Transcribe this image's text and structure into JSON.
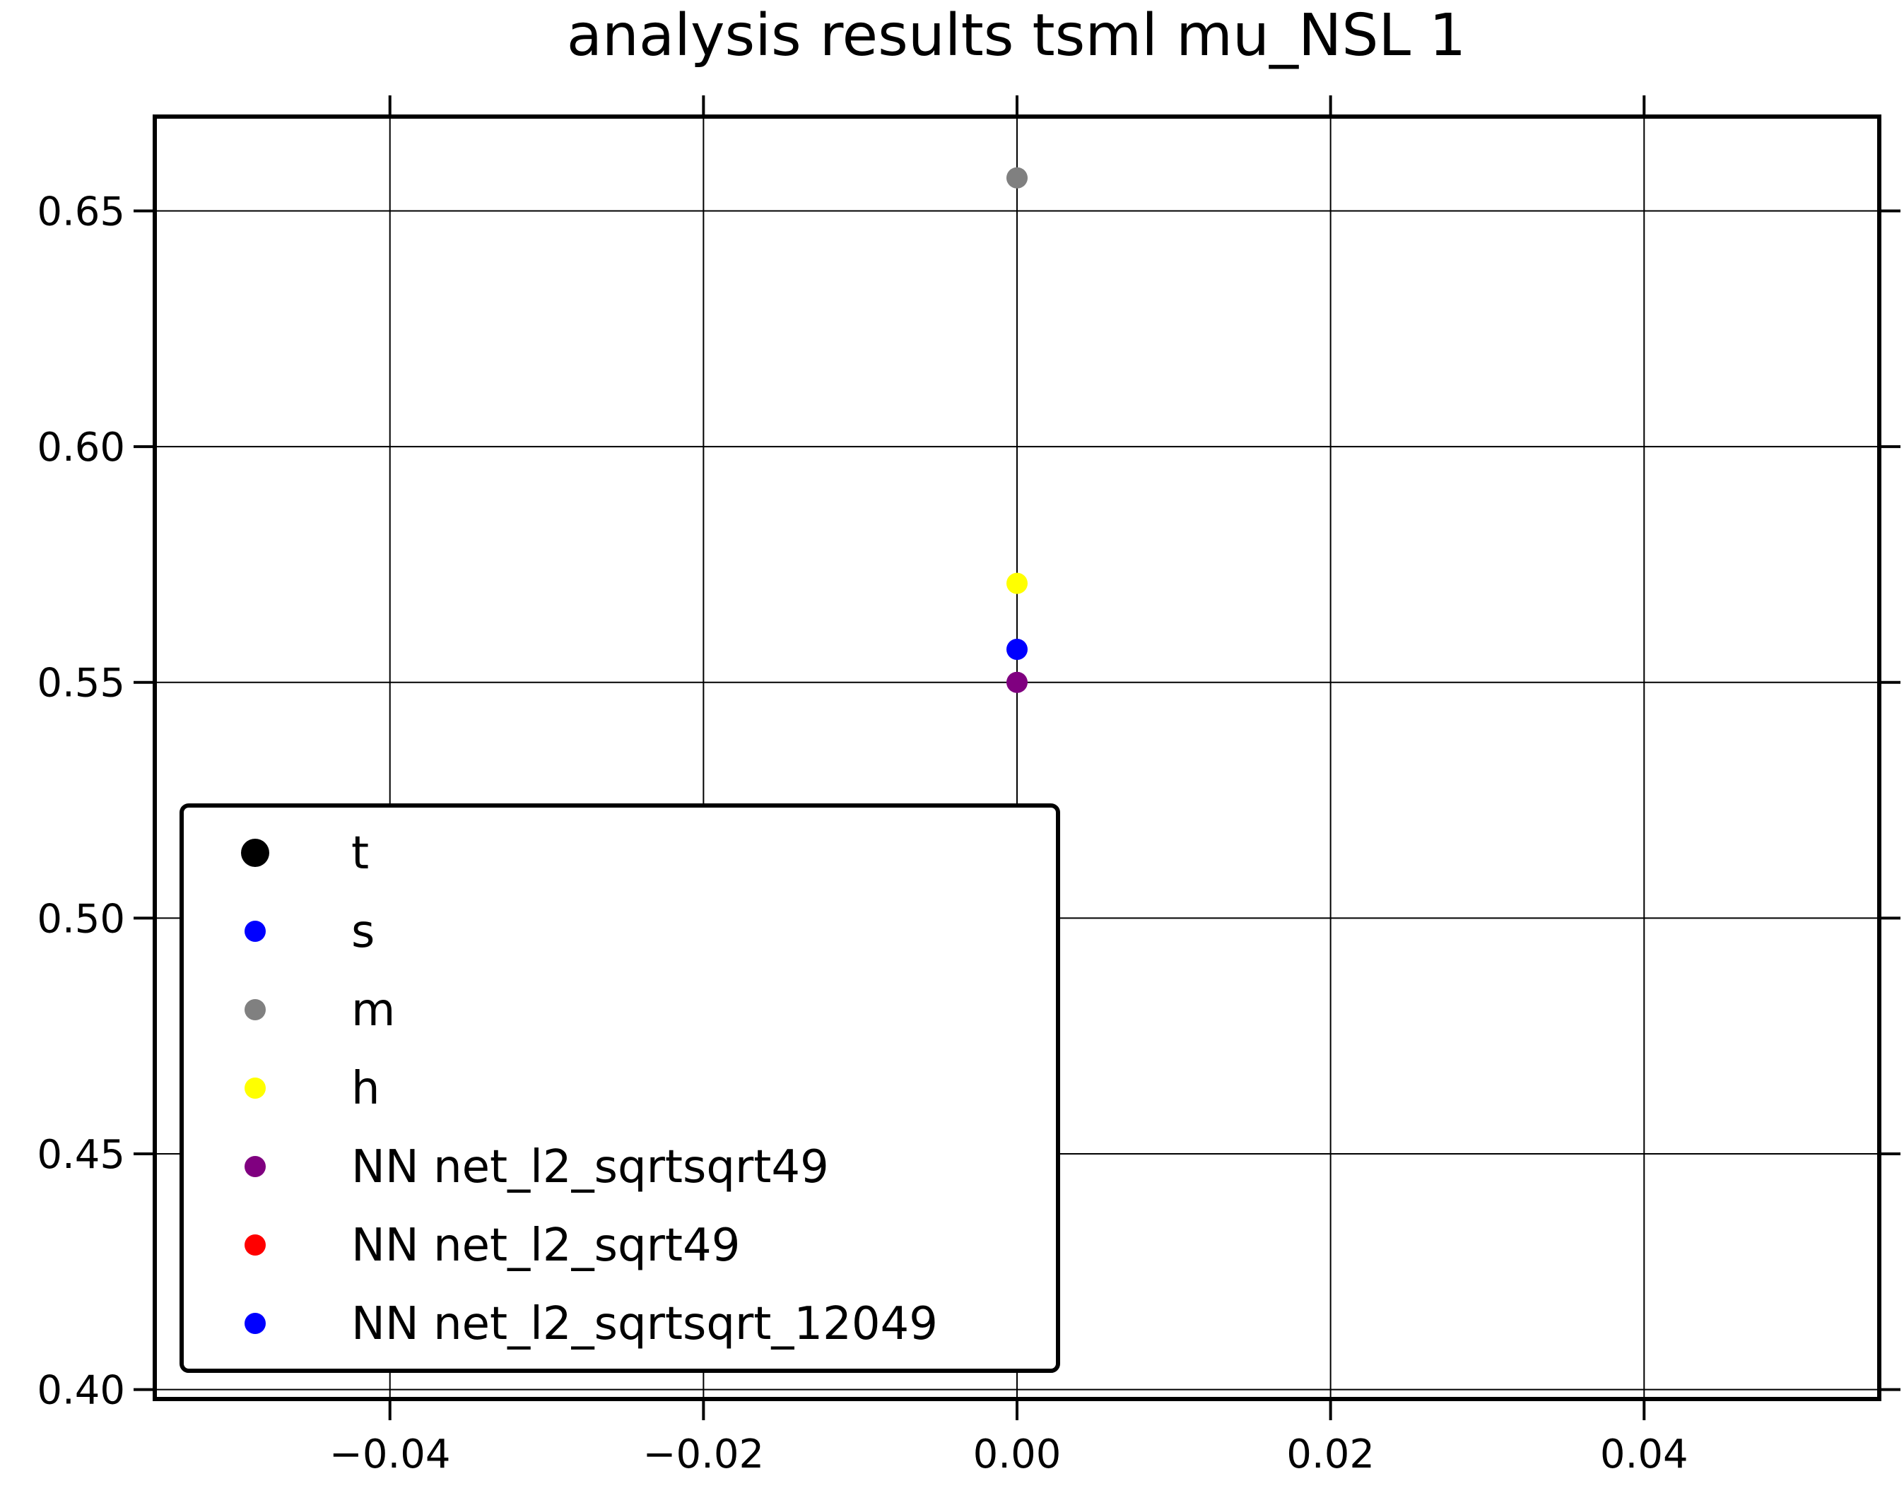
{
  "chart_data": {
    "type": "scatter",
    "title": "analysis results tsml  mu_NSL 1",
    "xlabel": "",
    "ylabel": "",
    "xlim": [
      -0.055,
      0.055
    ],
    "ylim": [
      0.398,
      0.67
    ],
    "xticks": [
      -0.04,
      -0.02,
      0.0,
      0.02,
      0.04
    ],
    "xtick_labels": [
      "−0.04",
      "−0.02",
      "0.00",
      "0.02",
      "0.04"
    ],
    "yticks": [
      0.4,
      0.45,
      0.5,
      0.55,
      0.6,
      0.65
    ],
    "ytick_labels": [
      "0.40",
      "0.45",
      "0.50",
      "0.55",
      "0.60",
      "0.65"
    ],
    "grid": true,
    "legend_position": "lower-left",
    "series": [
      {
        "name": "t",
        "color": "#000000",
        "marker": "large",
        "x": [],
        "y": []
      },
      {
        "name": "s",
        "color": "#0000ff",
        "x": [
          0.0
        ],
        "y": [
          0.557
        ]
      },
      {
        "name": "m",
        "color": "#808080",
        "x": [
          0.0
        ],
        "y": [
          0.657
        ]
      },
      {
        "name": "h",
        "color": "#ffff00",
        "x": [
          0.0
        ],
        "y": [
          0.571
        ]
      },
      {
        "name": "NN net_l2_sqrtsqrt49",
        "color": "#800080",
        "x": [
          0.0
        ],
        "y": [
          0.55
        ]
      },
      {
        "name": "NN net_l2_sqrt49",
        "color": "#ff0000",
        "x": [],
        "y": []
      },
      {
        "name": "NN net_l2_sqrtsqrt_12049",
        "color": "#0000ff",
        "x": [],
        "y": []
      }
    ]
  }
}
